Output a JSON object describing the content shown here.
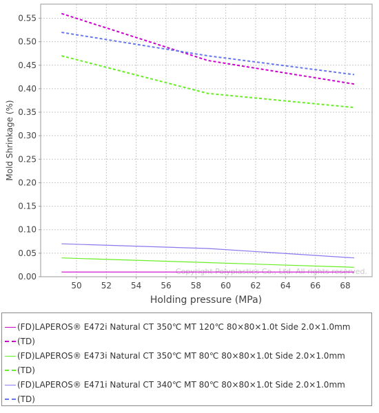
{
  "chart_data": {
    "type": "line",
    "xlabel": "Holding pressure (MPa)",
    "ylabel": "Mold Shrinkage (%)",
    "xlim": [
      47.6,
      69.8
    ],
    "ylim": [
      0.0,
      0.58
    ],
    "x_ticks": [
      "50",
      "52",
      "54",
      "56",
      "58",
      "60",
      "62",
      "64",
      "66",
      "68"
    ],
    "y_ticks": [
      "0.00",
      "0.05",
      "0.10",
      "0.15",
      "0.20",
      "0.25",
      "0.30",
      "0.35",
      "0.40",
      "0.45",
      "0.50",
      "0.55"
    ],
    "grid": true,
    "legend_position": "bottom",
    "watermark": "Copyright Polyplastics Co., Ltd. All rights reserved.",
    "series": [
      {
        "name": "(FD)LAPEROS® E472i Natural CT 350℃ MT 120℃ 80×80×1.0t Side 2.0×1.0mm",
        "color": "#cc00cc",
        "style": "solid",
        "x": [
          49,
          58.8,
          68.6
        ],
        "y": [
          0.01,
          0.01,
          0.01
        ]
      },
      {
        "name": "(TD)",
        "color": "#cc00cc",
        "style": "dashed",
        "x": [
          49,
          58.8,
          68.6
        ],
        "y": [
          0.56,
          0.46,
          0.41
        ]
      },
      {
        "name": "(FD)LAPEROS® E473i Natural CT 350℃ MT 80℃ 80×80×1.0t Side 2.0×1.0mm",
        "color": "#66ee22",
        "style": "solid",
        "x": [
          49,
          58.8,
          68.6
        ],
        "y": [
          0.04,
          0.03,
          0.02
        ]
      },
      {
        "name": "(TD)",
        "color": "#66ee22",
        "style": "dashed",
        "x": [
          49,
          58.8,
          68.6
        ],
        "y": [
          0.47,
          0.39,
          0.36
        ]
      },
      {
        "name": "(FD)LAPEROS® E471i Natural CT 340℃ MT 80℃ 80×80×1.0t Side 2.0×1.0mm",
        "color": "#8877ee",
        "style": "solid",
        "x": [
          49,
          58.8,
          68.6
        ],
        "y": [
          0.07,
          0.06,
          0.04
        ]
      },
      {
        "name": "(TD)",
        "color": "#6677ee",
        "style": "dashed",
        "x": [
          49,
          58.8,
          68.6
        ],
        "y": [
          0.52,
          0.47,
          0.43
        ]
      }
    ]
  }
}
